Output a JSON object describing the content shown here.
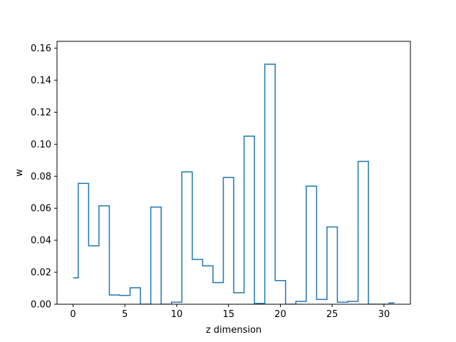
{
  "chart_data": {
    "type": "line",
    "drawstyle": "steps-mid",
    "xlabel": "z dimension",
    "ylabel": "w",
    "title": "",
    "xlim": [
      -1.55,
      32.55
    ],
    "ylim": [
      0,
      0.1643
    ],
    "xticks": [
      0,
      5,
      10,
      15,
      20,
      25,
      30
    ],
    "yticks": [
      0.0,
      0.02,
      0.04,
      0.06,
      0.08,
      0.1,
      0.12,
      0.14,
      0.16
    ],
    "xtick_labels": [
      "0",
      "5",
      "10",
      "15",
      "20",
      "25",
      "30"
    ],
    "ytick_labels": [
      "0.00",
      "0.02",
      "0.04",
      "0.06",
      "0.08",
      "0.10",
      "0.12",
      "0.14",
      "0.16"
    ],
    "grid": false,
    "line_color": "#1f77b4",
    "series": [
      {
        "x": [
          0,
          1,
          2,
          3,
          4,
          5,
          6,
          7,
          8,
          9,
          10,
          11,
          12,
          13,
          14,
          15,
          16,
          17,
          18,
          19,
          20,
          21,
          22,
          23,
          24,
          25,
          26,
          27,
          28,
          29,
          30,
          31
        ],
        "values": [
          0.0165,
          0.0755,
          0.0365,
          0.0615,
          0.0058,
          0.0055,
          0.0103,
          0.0,
          0.0607,
          0.0,
          0.0013,
          0.0827,
          0.028,
          0.024,
          0.0135,
          0.0792,
          0.0072,
          0.105,
          0.0005,
          0.15,
          0.0148,
          0.0,
          0.0018,
          0.0738,
          0.003,
          0.0483,
          0.0013,
          0.0018,
          0.0893,
          0.0,
          0.0,
          0.0008
        ]
      }
    ]
  }
}
